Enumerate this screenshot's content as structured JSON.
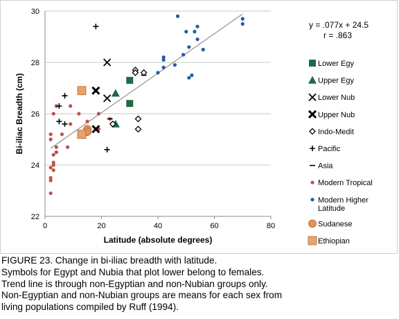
{
  "chart_data": {
    "type": "scatter",
    "title": "",
    "xlabel": "Latitude (absolute degrees)",
    "ylabel": "Bi-iliac Breadth (cm)",
    "xlim": [
      0,
      80
    ],
    "ylim": [
      22,
      30
    ],
    "x_ticks": [
      "0",
      "20",
      "40",
      "60",
      "80"
    ],
    "y_ticks": [
      "22",
      "24",
      "26",
      "28",
      "30"
    ],
    "grid": "horizontal",
    "legend_position": "right",
    "equation": "y = .077x + 24.5",
    "r_value": "r = .863",
    "trendline": {
      "slope": 0.077,
      "intercept": 24.5,
      "x_range": [
        2,
        70
      ]
    },
    "series": [
      {
        "name": "Lower Egy",
        "marker": "square",
        "color": "#1e6b45",
        "points": [
          [
            30,
            27.3
          ],
          [
            30,
            26.4
          ]
        ]
      },
      {
        "name": "Upper Egy",
        "marker": "triangle",
        "color": "#1e6b45",
        "points": [
          [
            25,
            26.8
          ],
          [
            25,
            25.6
          ]
        ]
      },
      {
        "name": "Lower Nub",
        "marker": "x",
        "color": "#000000",
        "points": [
          [
            22,
            28.0
          ],
          [
            22,
            26.6
          ]
        ]
      },
      {
        "name": "Upper Nub",
        "marker": "x-bold",
        "color": "#000000",
        "points": [
          [
            18,
            26.9
          ],
          [
            18,
            25.4
          ]
        ]
      },
      {
        "name": "Indo-Medit",
        "marker": "diamond",
        "color": "#000000",
        "points": [
          [
            32,
            27.7
          ],
          [
            32,
            27.6
          ],
          [
            35,
            27.6
          ],
          [
            33,
            25.8
          ],
          [
            33,
            25.4
          ],
          [
            24,
            25.6
          ]
        ]
      },
      {
        "name": "Pacific",
        "marker": "plus",
        "color": "#000000",
        "points": [
          [
            18,
            29.4
          ],
          [
            7,
            26.7
          ],
          [
            5,
            26.3
          ],
          [
            5,
            25.7
          ],
          [
            7,
            25.6
          ],
          [
            22,
            24.6
          ]
        ]
      },
      {
        "name": "Asia",
        "marker": "dash",
        "color": "#000000",
        "points": [
          [
            35,
            27.5
          ],
          [
            23,
            25.8
          ]
        ]
      },
      {
        "name": "Modern Tropical",
        "marker": "circle",
        "color": "#c0504d",
        "points": [
          [
            2,
            22.9
          ],
          [
            2,
            23.4
          ],
          [
            2,
            23.5
          ],
          [
            2,
            23.9
          ],
          [
            3,
            24.0
          ],
          [
            3,
            23.8
          ],
          [
            3,
            24.1
          ],
          [
            3,
            24.4
          ],
          [
            4,
            24.5
          ],
          [
            4,
            24.7
          ],
          [
            2,
            25.0
          ],
          [
            2,
            25.2
          ],
          [
            3,
            26.0
          ],
          [
            4,
            26.3
          ],
          [
            6,
            25.2
          ],
          [
            8,
            24.7
          ],
          [
            9,
            26.3
          ],
          [
            9,
            25.6
          ],
          [
            12,
            26.0
          ],
          [
            15,
            25.7
          ],
          [
            15,
            25.2
          ],
          [
            19,
            26.0
          ],
          [
            19,
            25.4
          ],
          [
            23,
            25.8
          ],
          [
            24,
            25.6
          ]
        ]
      },
      {
        "name": "Modern Higher Latitude",
        "marker": "circle",
        "color": "#1f5fa0",
        "points": [
          [
            40,
            27.6
          ],
          [
            42,
            28.2
          ],
          [
            42,
            28.1
          ],
          [
            42,
            27.8
          ],
          [
            46,
            27.9
          ],
          [
            47,
            29.8
          ],
          [
            49,
            28.3
          ],
          [
            50,
            29.2
          ],
          [
            51,
            28.6
          ],
          [
            51,
            27.4
          ],
          [
            52,
            27.5
          ],
          [
            53,
            29.2
          ],
          [
            54,
            29.4
          ],
          [
            54,
            28.9
          ],
          [
            56,
            28.5
          ],
          [
            70,
            29.7
          ],
          [
            70,
            29.5
          ]
        ]
      },
      {
        "name": "Sudanese",
        "marker": "circle-large",
        "color": "#e0925a",
        "points": [
          [
            15,
            25.4
          ],
          [
            15,
            25.3
          ]
        ]
      },
      {
        "name": "Ethiopian",
        "marker": "square-large",
        "color": "#e8a26a",
        "points": [
          [
            13,
            26.9
          ],
          [
            13,
            25.2
          ]
        ]
      }
    ]
  },
  "legend": [
    {
      "label": "Lower Egy",
      "icon": "square"
    },
    {
      "label": "Upper Egy",
      "icon": "triangle"
    },
    {
      "label": "Lower Nub",
      "icon": "x"
    },
    {
      "label": "Upper Nub",
      "icon": "x-bold"
    },
    {
      "label": "Indo-Medit",
      "icon": "diamond"
    },
    {
      "label": "Pacific",
      "icon": "plus"
    },
    {
      "label": "Asia",
      "icon": "dash"
    },
    {
      "label": "Modern Tropical",
      "icon": "circle"
    },
    {
      "label": "Modern Higher",
      "label2": "Latitude",
      "icon": "circle"
    },
    {
      "label": "Sudanese",
      "icon": "circle-large"
    },
    {
      "label": "Ethiopian",
      "icon": "square-large"
    }
  ],
  "caption": [
    "FIGURE 23. Change in bi-iliac breadth with latitude.",
    "Symbols for Egypt and Nubia that plot lower belong to females.",
    "Trend line is through non-Egyptian and non-Nubian groups only.",
    "Non-Egyptian and non-Nubian groups are means for each sex from",
    "living populations compiled by Ruff (1994)."
  ]
}
